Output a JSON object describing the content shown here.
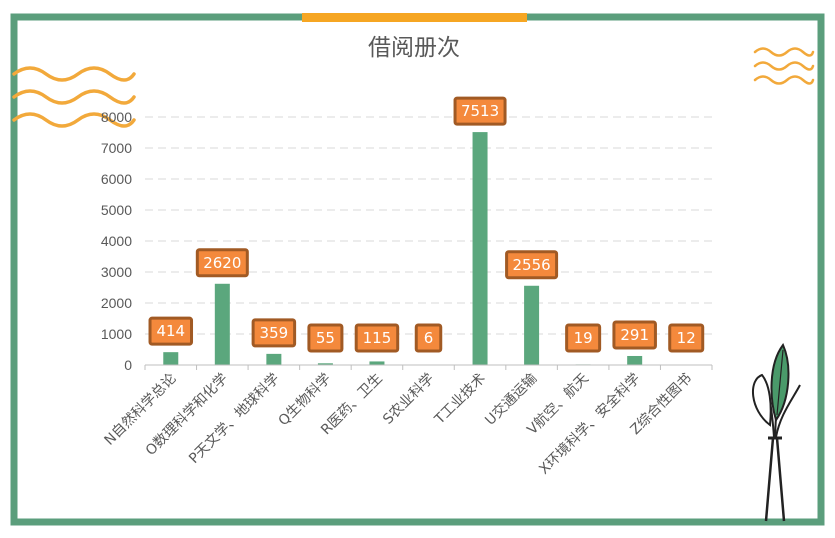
{
  "colors": {
    "frame": "#5b9e7c",
    "accent_bar": "#f6a623",
    "bar": "#5ba77d",
    "label_fill": "#f4893c",
    "label_border": "#a15a24",
    "wave": "#f2a93b",
    "grid": "#d9d9d9",
    "axis_text": "#595959",
    "title_text": "#595959"
  },
  "icons": [
    "wave-decoration-icon",
    "plant-in-vase-icon"
  ],
  "chart_data": {
    "type": "bar",
    "title": "借阅册次",
    "categories": [
      "N自然科学总论",
      "O数理科学和化学",
      "P天文学、地球科学",
      "Q生物科学",
      "R医药、卫生",
      "S农业科学",
      "T工业技术",
      "U交通运输",
      "V航空、航天",
      "X环境科学、安全科学",
      "Z综合性图书"
    ],
    "values": [
      414,
      2620,
      359,
      55,
      115,
      6,
      7513,
      2556,
      19,
      291,
      12
    ],
    "data_labels": [
      "414",
      "2620",
      "359",
      "55",
      "115",
      "6",
      "7513",
      "2556",
      "19",
      "291",
      "12"
    ],
    "y_ticks": [
      "0",
      "1000",
      "2000",
      "3000",
      "4000",
      "5000",
      "6000",
      "7000",
      "8000"
    ],
    "ylim": [
      0,
      8000
    ],
    "grid": true,
    "legend": "none"
  }
}
